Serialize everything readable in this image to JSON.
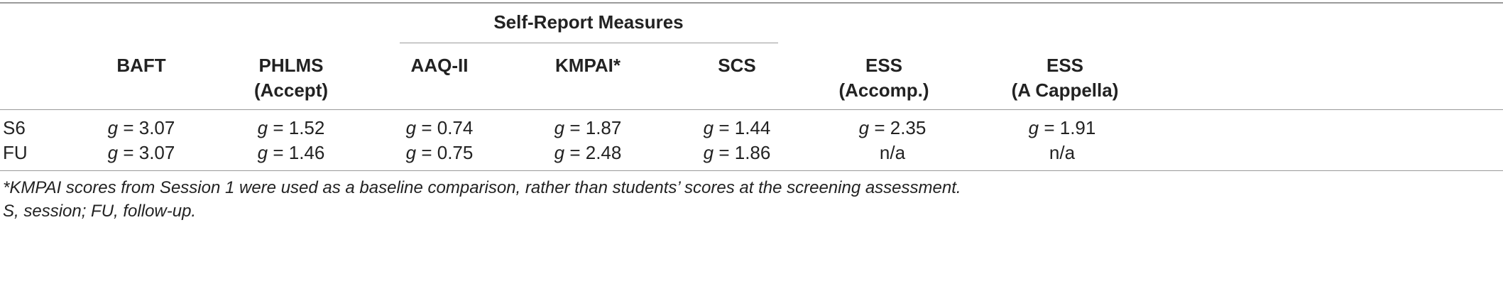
{
  "table": {
    "group_header": "Self-Report Measures",
    "columns": [
      {
        "line1": "BAFT",
        "line2": ""
      },
      {
        "line1": "PHLMS",
        "line2": "(Accept)"
      },
      {
        "line1": "AAQ-II",
        "line2": ""
      },
      {
        "line1": "KMPAI*",
        "line2": ""
      },
      {
        "line1": "SCS",
        "line2": ""
      },
      {
        "line1": "ESS",
        "line2": "(Accomp.)"
      },
      {
        "line1": "ESS",
        "line2": "(A Cappella)"
      }
    ],
    "rows": [
      {
        "label": "S6",
        "cells": [
          "g = 3.07",
          "g = 1.52",
          "g = 0.74",
          "g = 1.87",
          "g = 1.44",
          "g = 2.35",
          "g = 1.91"
        ]
      },
      {
        "label": "FU",
        "cells": [
          "g = 3.07",
          "g = 1.46",
          "g = 0.75",
          "g = 2.48",
          "g = 1.86",
          "n/a",
          "n/a"
        ]
      }
    ]
  },
  "footnotes": {
    "note1": "*KMPAI scores from Session 1 were used as a baseline comparison, rather than students’ scores at the screening assessment.",
    "note2": "S, session; FU, follow-up."
  }
}
